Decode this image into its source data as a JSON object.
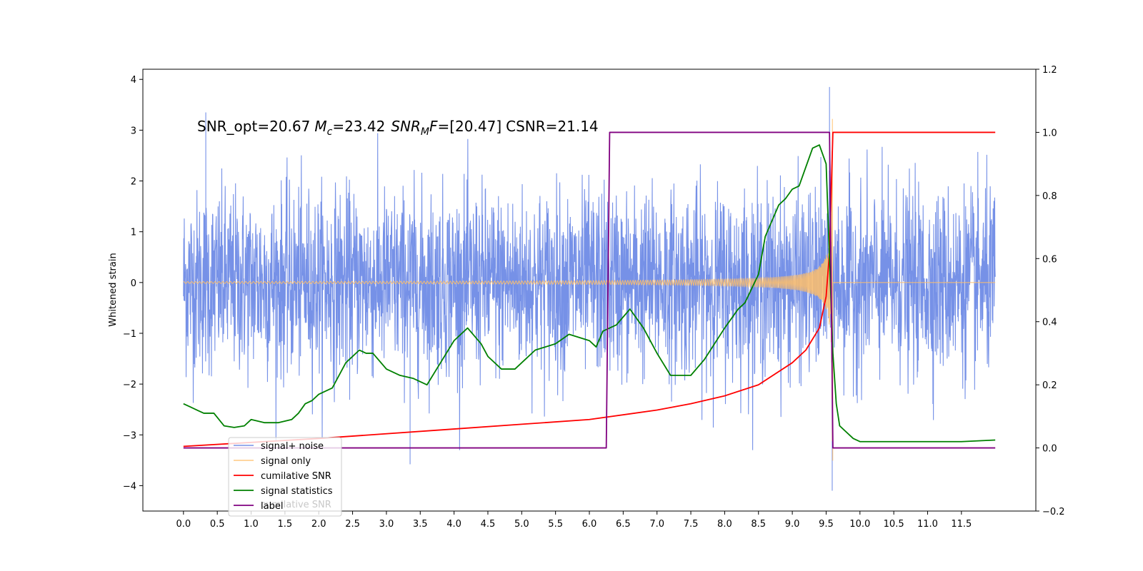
{
  "chart_data": {
    "type": "line",
    "title": "",
    "xlabel": "",
    "ylabel": "Whitened strain",
    "ylabel_right": "",
    "xlim": [
      -0.6,
      12.6
    ],
    "ylim": [
      -4.5,
      4.2
    ],
    "ylim_right": [
      -0.2,
      1.2
    ],
    "xticks": [
      "0.0",
      "0.5",
      "1.0",
      "1.5",
      "2.0",
      "2.5",
      "3.0",
      "3.5",
      "4.0",
      "4.5",
      "5.0",
      "5.5",
      "6.0",
      "6.5",
      "7.0",
      "7.5",
      "8.0",
      "8.5",
      "9.0",
      "9.5",
      "10.0",
      "10.5",
      "11.0",
      "11.5"
    ],
    "yticks_left": [
      "−4",
      "−3",
      "−2",
      "−1",
      "0",
      "1",
      "2",
      "3",
      "4"
    ],
    "yticks_right": [
      "−0.2",
      "0.0",
      "0.2",
      "0.4",
      "0.6",
      "0.8",
      "1.0",
      "1.2"
    ],
    "annotation": {
      "snr_opt": "SNR_opt=20.67",
      "mc_symbol": "M",
      "mc_sub": "c",
      "mc_value": "=23.42",
      "snr_symbol": "SNR",
      "snr_sub": "M",
      "snr_f": "F",
      "snr_value": "=[20.47]",
      "csnr": "CSNR=21.14"
    },
    "legend": {
      "placement": "lower-left",
      "entries": [
        "signal+ noise",
        "signal only",
        "cumilative SNR",
        "signal statistics",
        "label"
      ],
      "ghost_text": "cumilative SNR"
    },
    "colors": {
      "noise": "#6f8be6",
      "signal": "#ffbe6a",
      "cumulative": "#ff0000",
      "statistics": "#008000",
      "label": "#800080"
    },
    "series": [
      {
        "name": "signal+ noise",
        "axis": "left",
        "sample_rate_hz": 256,
        "x_range": [
          0,
          12
        ],
        "amplitude_sd": 0.9,
        "peak_points": [
          [
            0.33,
            3.35
          ],
          [
            3.35,
            -3.58
          ],
          [
            9.55,
            3.85
          ],
          [
            9.59,
            -4.1
          ]
        ]
      },
      {
        "name": "signal only",
        "axis": "left",
        "merger_time": 9.6,
        "x_range": [
          0,
          12
        ],
        "peak_amplitude": 3.55,
        "after_merger": 0
      },
      {
        "name": "cumilative SNR",
        "axis": "right",
        "x": [
          0,
          2,
          4,
          5,
          6,
          7,
          7.5,
          8,
          8.5,
          9,
          9.2,
          9.4,
          9.5,
          9.55,
          9.6,
          12
        ],
        "y": [
          0.005,
          0.03,
          0.06,
          0.075,
          0.09,
          0.12,
          0.14,
          0.165,
          0.2,
          0.27,
          0.31,
          0.38,
          0.48,
          0.62,
          1.0,
          1.0
        ]
      },
      {
        "name": "signal statistics",
        "axis": "right",
        "x": [
          0,
          0.1,
          0.2,
          0.3,
          0.45,
          0.6,
          0.75,
          0.9,
          1.0,
          1.2,
          1.4,
          1.6,
          1.7,
          1.8,
          1.9,
          2.0,
          2.2,
          2.4,
          2.6,
          2.7,
          2.8,
          3.0,
          3.2,
          3.4,
          3.6,
          3.8,
          4.0,
          4.2,
          4.4,
          4.5,
          4.7,
          4.9,
          5.0,
          5.2,
          5.5,
          5.7,
          6.0,
          6.1,
          6.2,
          6.4,
          6.6,
          6.8,
          7.0,
          7.2,
          7.5,
          7.7,
          8.0,
          8.2,
          8.3,
          8.5,
          8.6,
          8.8,
          8.9,
          9.0,
          9.1,
          9.2,
          9.3,
          9.4,
          9.5,
          9.6,
          9.65,
          9.7,
          9.9,
          10.0,
          10.5,
          11.0,
          11.5,
          12.0
        ],
        "y": [
          0.14,
          0.13,
          0.12,
          0.11,
          0.11,
          0.07,
          0.065,
          0.07,
          0.09,
          0.08,
          0.08,
          0.09,
          0.11,
          0.14,
          0.15,
          0.17,
          0.19,
          0.27,
          0.31,
          0.3,
          0.3,
          0.25,
          0.23,
          0.22,
          0.2,
          0.27,
          0.34,
          0.38,
          0.33,
          0.29,
          0.25,
          0.25,
          0.27,
          0.31,
          0.33,
          0.36,
          0.34,
          0.32,
          0.37,
          0.39,
          0.44,
          0.38,
          0.3,
          0.23,
          0.23,
          0.28,
          0.38,
          0.44,
          0.46,
          0.55,
          0.67,
          0.77,
          0.79,
          0.82,
          0.83,
          0.89,
          0.95,
          0.96,
          0.9,
          0.3,
          0.14,
          0.07,
          0.03,
          0.02,
          0.02,
          0.02,
          0.02,
          0.025
        ]
      },
      {
        "name": "label",
        "axis": "right",
        "x": [
          0,
          6.25,
          6.3,
          9.55,
          9.6,
          12
        ],
        "y": [
          0,
          0,
          1,
          1,
          0,
          0
        ]
      }
    ]
  }
}
